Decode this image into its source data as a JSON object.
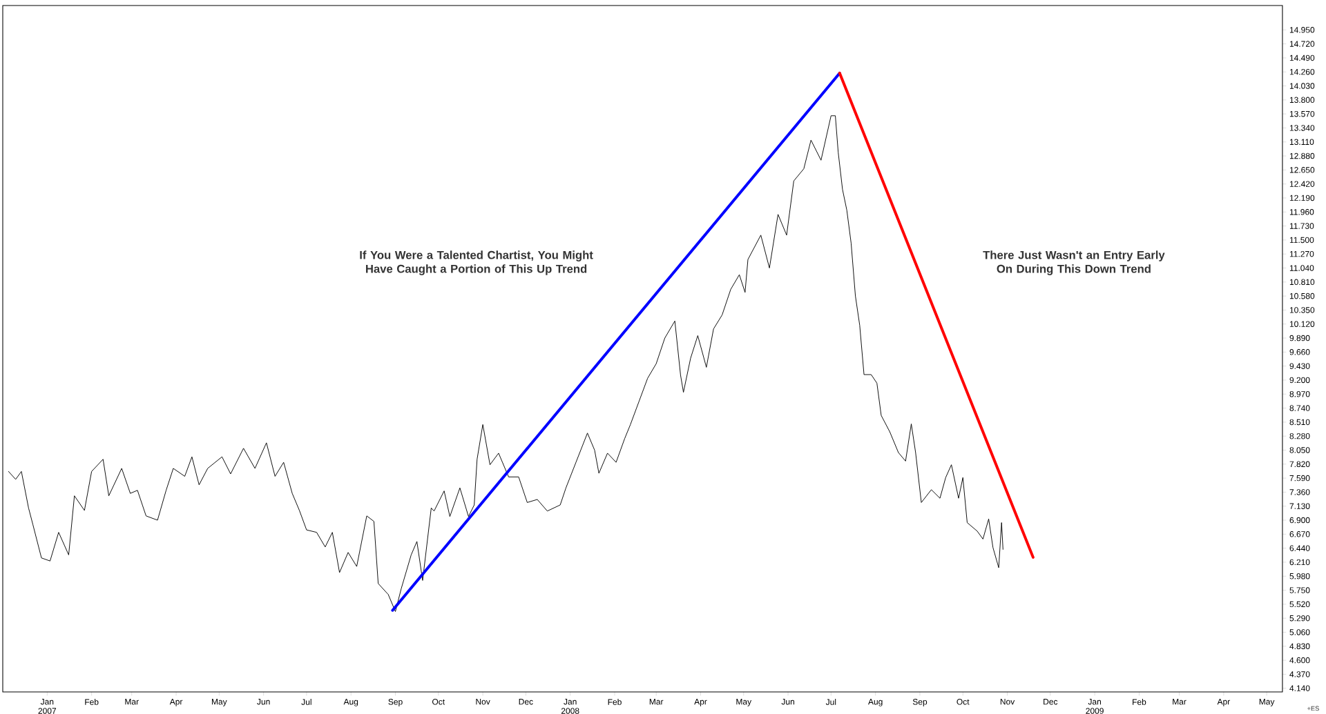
{
  "chart_data": {
    "type": "line",
    "annotations": [
      "If You Were a Talented Chartist, You Might Have Caught a Portion of This Up Trend",
      "There Just Wasn't an Entry Early On During This Down Trend",
      "+ES"
    ],
    "xlim": [
      "2006-12-01",
      "2009-05-12"
    ],
    "xticks": [
      {
        "value": "2007-01-01",
        "label": "Jan 2007"
      },
      {
        "value": "2007-02-01",
        "label": "Feb"
      },
      {
        "value": "2007-03-01",
        "label": "Mar"
      },
      {
        "value": "2007-04-01",
        "label": "Apr"
      },
      {
        "value": "2007-05-01",
        "label": "May"
      },
      {
        "value": "2007-06-01",
        "label": "Jun"
      },
      {
        "value": "2007-07-01",
        "label": "Jul"
      },
      {
        "value": "2007-08-01",
        "label": "Aug"
      },
      {
        "value": "2007-09-01",
        "label": "Sep"
      },
      {
        "value": "2007-10-01",
        "label": "Oct"
      },
      {
        "value": "2007-11-01",
        "label": "Nov"
      },
      {
        "value": "2007-12-01",
        "label": "Dec"
      },
      {
        "value": "2008-01-01",
        "label": "Jan 2008"
      },
      {
        "value": "2008-02-01",
        "label": "Feb"
      },
      {
        "value": "2008-03-01",
        "label": "Mar"
      },
      {
        "value": "2008-04-01",
        "label": "Apr"
      },
      {
        "value": "2008-05-01",
        "label": "May"
      },
      {
        "value": "2008-06-01",
        "label": "Jun"
      },
      {
        "value": "2008-07-01",
        "label": "Jul"
      },
      {
        "value": "2008-08-01",
        "label": "Aug"
      },
      {
        "value": "2008-09-01",
        "label": "Sep"
      },
      {
        "value": "2008-10-01",
        "label": "Oct"
      },
      {
        "value": "2008-11-01",
        "label": "Nov"
      },
      {
        "value": "2008-12-01",
        "label": "Dec"
      },
      {
        "value": "2009-01-01",
        "label": "Jan 2009"
      },
      {
        "value": "2009-02-01",
        "label": "Feb"
      },
      {
        "value": "2009-03-01",
        "label": "Mar"
      },
      {
        "value": "2009-04-01",
        "label": "Apr"
      },
      {
        "value": "2009-05-01",
        "label": "May"
      }
    ],
    "ylim": [
      4.08,
      15.35
    ],
    "yticks": [
      {
        "value": 4.14,
        "label": "4.140"
      },
      {
        "value": 4.37,
        "label": "4.370"
      },
      {
        "value": 4.6,
        "label": "4.600"
      },
      {
        "value": 4.83,
        "label": "4.830"
      },
      {
        "value": 5.06,
        "label": "5.060"
      },
      {
        "value": 5.29,
        "label": "5.290"
      },
      {
        "value": 5.52,
        "label": "5.520"
      },
      {
        "value": 5.75,
        "label": "5.750"
      },
      {
        "value": 5.98,
        "label": "5.980"
      },
      {
        "value": 6.21,
        "label": "6.210"
      },
      {
        "value": 6.44,
        "label": "6.440"
      },
      {
        "value": 6.67,
        "label": "6.670"
      },
      {
        "value": 6.9,
        "label": "6.900"
      },
      {
        "value": 7.13,
        "label": "7.130"
      },
      {
        "value": 7.36,
        "label": "7.360"
      },
      {
        "value": 7.59,
        "label": "7.590"
      },
      {
        "value": 7.82,
        "label": "7.820"
      },
      {
        "value": 8.05,
        "label": "8.050"
      },
      {
        "value": 8.28,
        "label": "8.280"
      },
      {
        "value": 8.51,
        "label": "8.510"
      },
      {
        "value": 8.74,
        "label": "8.740"
      },
      {
        "value": 8.97,
        "label": "8.970"
      },
      {
        "value": 9.2,
        "label": "9.200"
      },
      {
        "value": 9.43,
        "label": "9.430"
      },
      {
        "value": 9.66,
        "label": "9.660"
      },
      {
        "value": 9.89,
        "label": "9.890"
      },
      {
        "value": 10.12,
        "label": "10.120"
      },
      {
        "value": 10.35,
        "label": "10.350"
      },
      {
        "value": 10.58,
        "label": "10.580"
      },
      {
        "value": 10.81,
        "label": "10.810"
      },
      {
        "value": 11.04,
        "label": "11.040"
      },
      {
        "value": 11.27,
        "label": "11.270"
      },
      {
        "value": 11.5,
        "label": "11.500"
      },
      {
        "value": 11.73,
        "label": "11.730"
      },
      {
        "value": 11.96,
        "label": "11.960"
      },
      {
        "value": 12.19,
        "label": "12.190"
      },
      {
        "value": 12.42,
        "label": "12.420"
      },
      {
        "value": 12.65,
        "label": "12.650"
      },
      {
        "value": 12.88,
        "label": "12.880"
      },
      {
        "value": 13.11,
        "label": "13.110"
      },
      {
        "value": 13.34,
        "label": "13.340"
      },
      {
        "value": 13.57,
        "label": "13.570"
      },
      {
        "value": 13.8,
        "label": "13.800"
      },
      {
        "value": 14.03,
        "label": "14.030"
      },
      {
        "value": 14.26,
        "label": "14.260"
      },
      {
        "value": 14.49,
        "label": "14.490"
      },
      {
        "value": 14.72,
        "label": "14.720"
      },
      {
        "value": 14.95,
        "label": "14.950"
      }
    ],
    "series": [
      {
        "color": "#000000",
        "x": [
          "2006-12-05",
          "2006-12-10",
          "2006-12-14",
          "2006-12-19",
          "2006-12-22",
          "2006-12-28",
          "2007-01-03",
          "2007-01-09",
          "2007-01-16",
          "2007-01-20",
          "2007-01-27",
          "2007-02-01",
          "2007-02-09",
          "2007-02-13",
          "2007-02-22",
          "2007-02-28",
          "2007-03-05",
          "2007-03-11",
          "2007-03-19",
          "2007-03-25",
          "2007-03-30",
          "2007-04-07",
          "2007-04-12",
          "2007-04-17",
          "2007-04-23",
          "2007-05-03",
          "2007-05-09",
          "2007-05-18",
          "2007-05-26",
          "2007-06-03",
          "2007-06-09",
          "2007-06-15",
          "2007-06-21",
          "2007-06-26",
          "2007-07-01",
          "2007-07-08",
          "2007-07-14",
          "2007-07-19",
          "2007-07-24",
          "2007-07-30",
          "2007-08-05",
          "2007-08-12",
          "2007-08-17",
          "2007-08-20",
          "2007-08-27",
          "2007-09-01",
          "2007-09-05",
          "2007-09-12",
          "2007-09-16",
          "2007-09-20",
          "2007-09-26",
          "2007-09-28",
          "2007-10-05",
          "2007-10-09",
          "2007-10-16",
          "2007-10-22",
          "2007-10-26",
          "2007-10-28",
          "2007-11-01",
          "2007-11-06",
          "2007-11-12",
          "2007-11-19",
          "2007-11-26",
          "2007-12-02",
          "2007-12-09",
          "2007-12-16",
          "2007-12-25",
          "2007-12-29",
          "2008-01-05",
          "2008-01-13",
          "2008-01-18",
          "2008-01-21",
          "2008-01-27",
          "2008-02-02",
          "2008-02-08",
          "2008-02-12",
          "2008-02-18",
          "2008-02-24",
          "2008-03-01",
          "2008-03-07",
          "2008-03-14",
          "2008-03-18",
          "2008-03-20",
          "2008-03-25",
          "2008-03-30",
          "2008-04-05",
          "2008-04-10",
          "2008-04-16",
          "2008-04-22",
          "2008-04-28",
          "2008-05-02",
          "2008-05-04",
          "2008-05-13",
          "2008-05-19",
          "2008-05-25",
          "2008-05-31",
          "2008-06-05",
          "2008-06-12",
          "2008-06-17",
          "2008-06-24",
          "2008-07-01",
          "2008-07-04",
          "2008-07-06",
          "2008-07-09",
          "2008-07-12",
          "2008-07-15",
          "2008-07-18",
          "2008-07-21",
          "2008-07-24",
          "2008-07-29",
          "2008-08-02",
          "2008-08-05",
          "2008-08-11",
          "2008-08-17",
          "2008-08-22",
          "2008-08-26",
          "2008-08-29",
          "2008-09-02",
          "2008-09-09",
          "2008-09-15",
          "2008-09-19",
          "2008-09-23",
          "2008-09-28",
          "2008-10-01",
          "2008-10-04",
          "2008-10-11",
          "2008-10-15",
          "2008-10-19",
          "2008-10-22",
          "2008-10-26",
          "2008-10-28",
          "2008-10-29"
        ],
        "values": [
          7.7,
          7.57,
          7.7,
          7.1,
          6.83,
          6.28,
          6.23,
          6.7,
          6.33,
          7.3,
          7.06,
          7.7,
          7.9,
          7.3,
          7.75,
          7.34,
          7.39,
          6.97,
          6.9,
          7.39,
          7.75,
          7.62,
          7.94,
          7.48,
          7.75,
          7.94,
          7.66,
          8.08,
          7.75,
          8.17,
          7.62,
          7.85,
          7.34,
          7.06,
          6.74,
          6.7,
          6.46,
          6.7,
          6.04,
          6.37,
          6.14,
          6.97,
          6.88,
          5.86,
          5.68,
          5.4,
          5.77,
          6.33,
          6.55,
          5.91,
          7.1,
          7.05,
          7.38,
          6.96,
          7.43,
          6.96,
          7.15,
          7.9,
          8.47,
          7.81,
          8.0,
          7.61,
          7.61,
          7.19,
          7.24,
          7.05,
          7.15,
          7.43,
          7.85,
          8.33,
          8.05,
          7.67,
          8.0,
          7.85,
          8.24,
          8.47,
          8.85,
          9.23,
          9.47,
          9.89,
          10.17,
          9.28,
          9.0,
          9.56,
          9.93,
          9.41,
          10.04,
          10.27,
          10.69,
          10.93,
          10.64,
          11.18,
          11.58,
          11.04,
          11.92,
          11.58,
          12.47,
          12.67,
          13.14,
          12.81,
          13.54,
          13.54,
          12.94,
          12.33,
          11.99,
          11.45,
          10.58,
          10.1,
          9.29,
          9.29,
          9.15,
          8.62,
          8.35,
          8.01,
          7.87,
          8.48,
          8.01,
          7.19,
          7.4,
          7.26,
          7.6,
          7.81,
          7.26,
          7.6,
          6.86,
          6.72,
          6.59,
          6.92,
          6.45,
          6.12,
          6.86,
          6.42
        ]
      },
      {
        "color": "#0000ff",
        "x": [
          "2007-08-30",
          "2008-07-07"
        ],
        "values": [
          5.42,
          14.24
        ]
      },
      {
        "color": "#ff0000",
        "x": [
          "2008-07-07",
          "2008-11-19"
        ],
        "values": [
          14.24,
          6.29
        ]
      }
    ]
  }
}
